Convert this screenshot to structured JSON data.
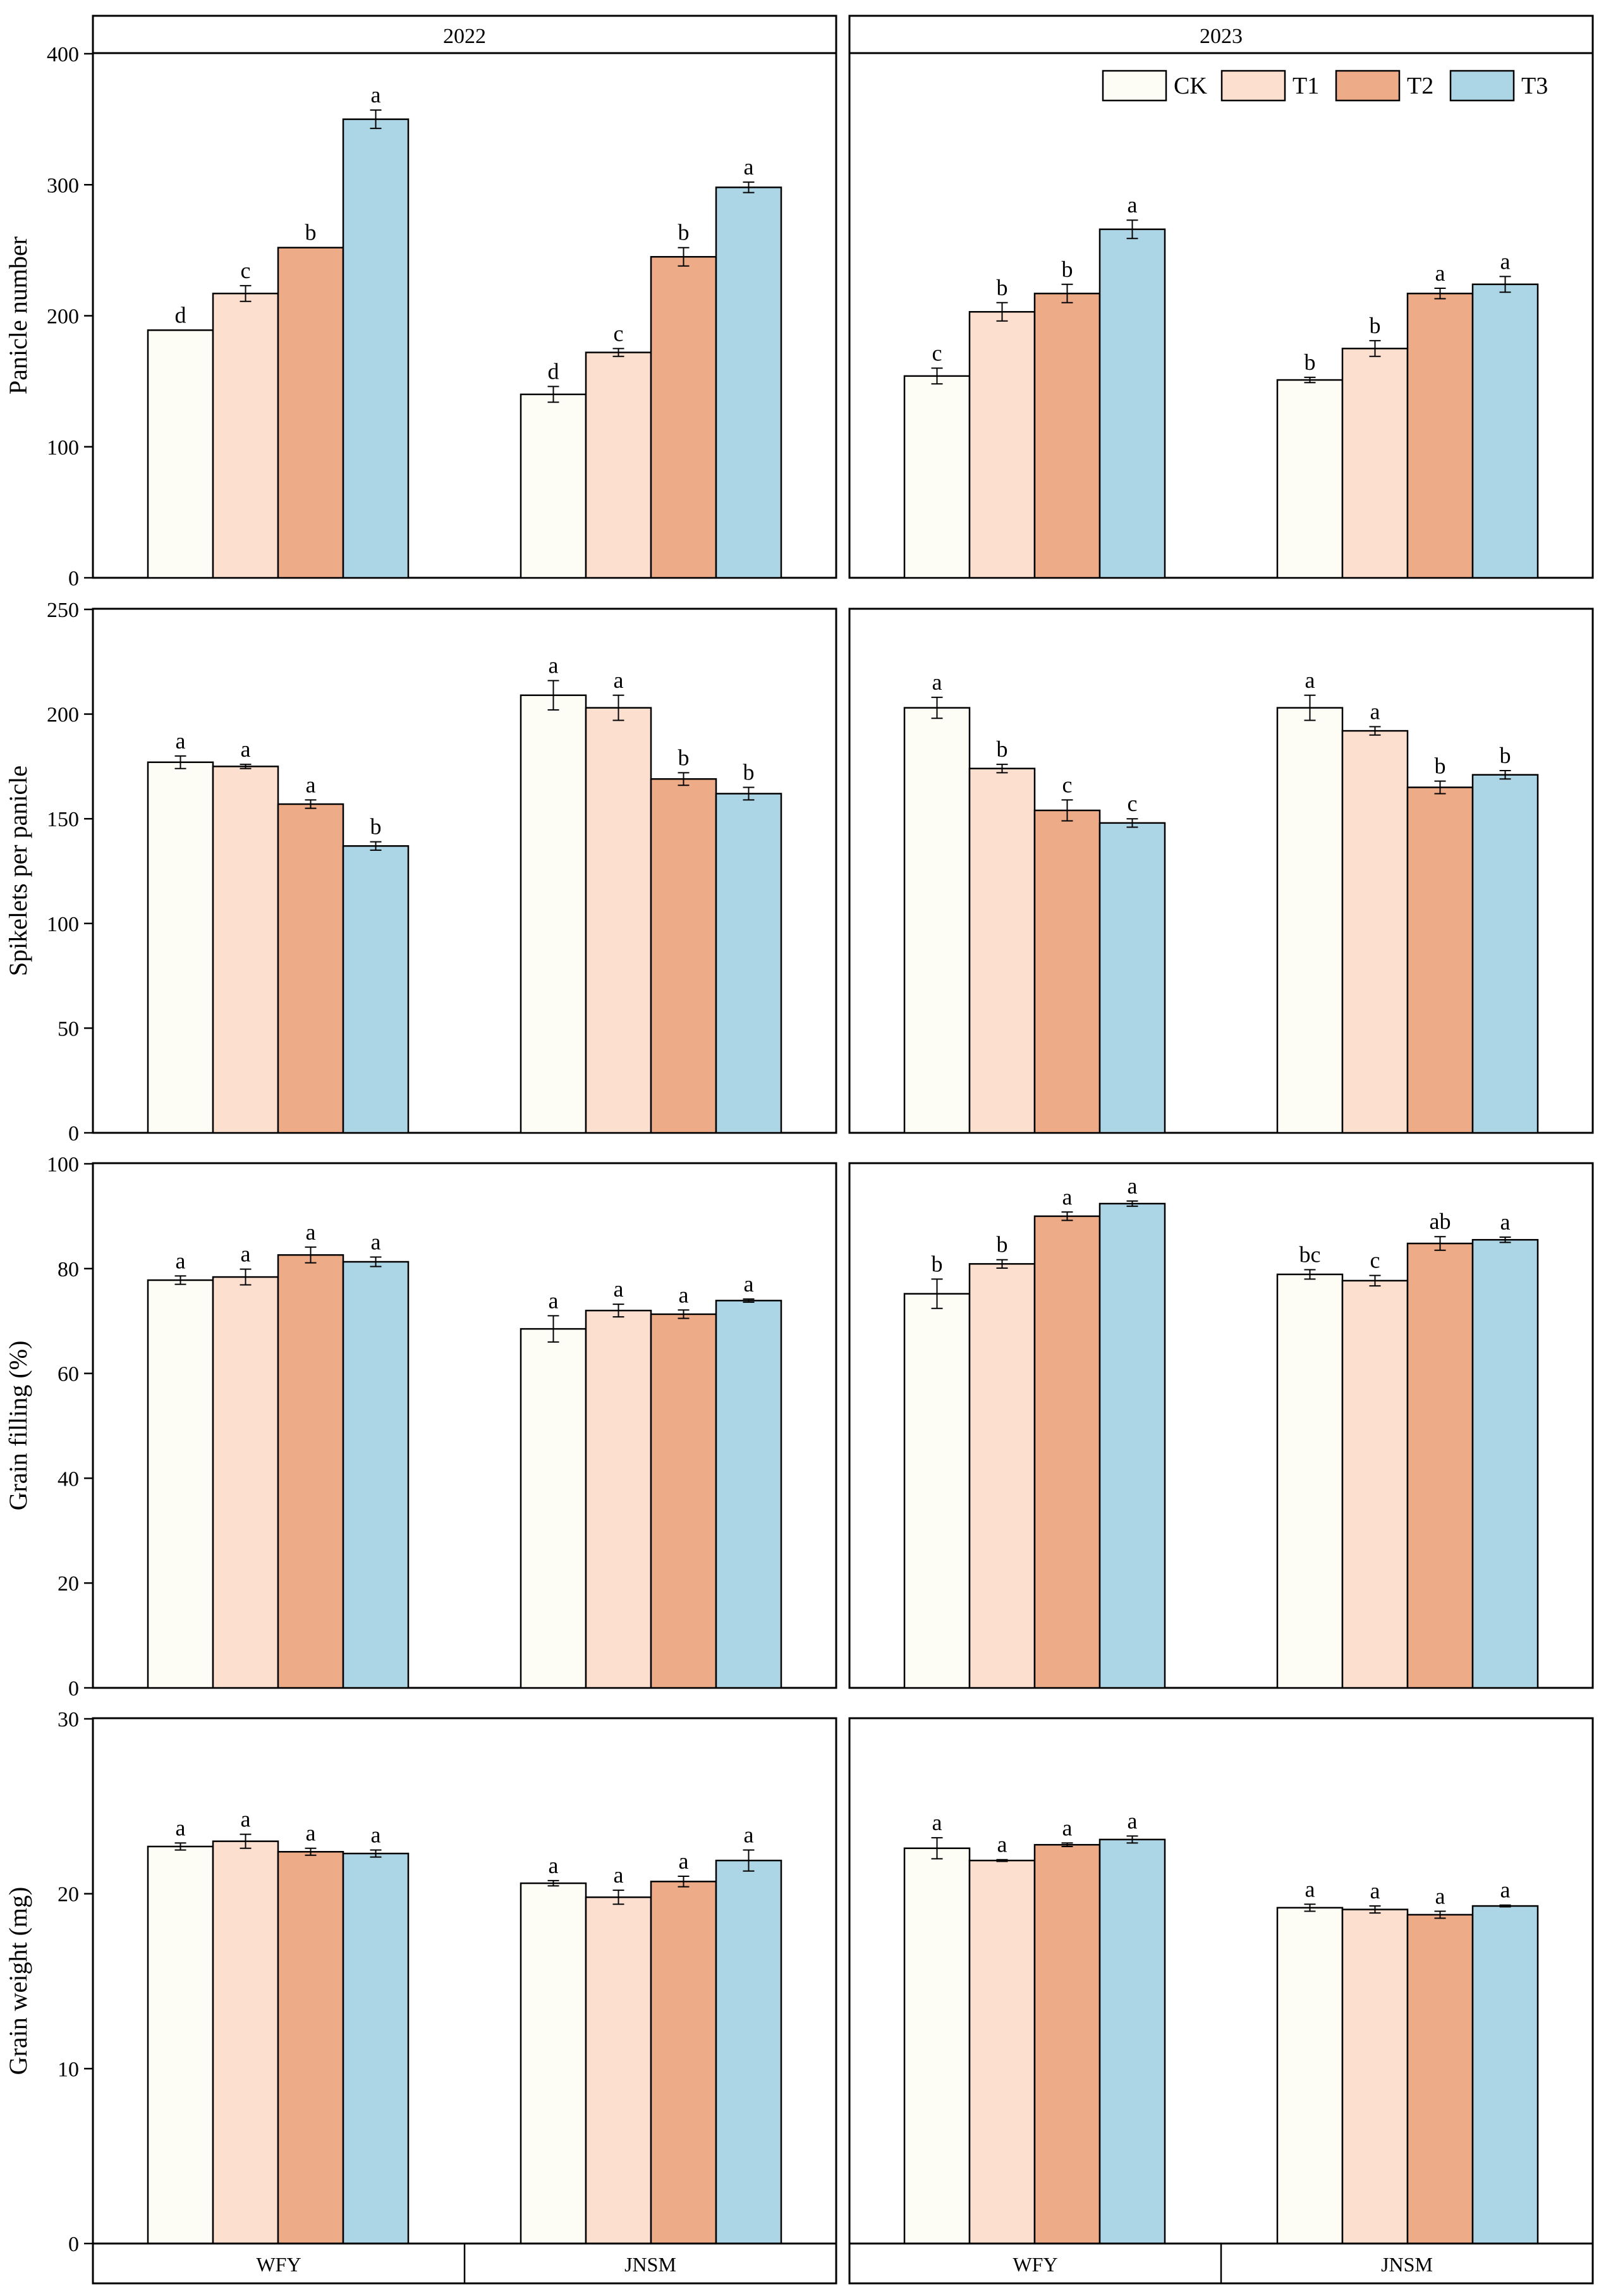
{
  "colors": {
    "CK": "#fefdf5",
    "T1": "#fddfcf",
    "T2": "#eeab88",
    "T3": "#acd5e6"
  },
  "legend": [
    "CK",
    "T1",
    "T2",
    "T3"
  ],
  "columns": [
    "2022",
    "2023"
  ],
  "varieties": [
    "WFY",
    "JNSM"
  ],
  "chart_data": [
    {
      "type": "bar",
      "row": 0,
      "col": 0,
      "title": "2022",
      "ylabel": "Panicle number",
      "ylim": [
        0,
        400
      ],
      "yticks": [
        0,
        100,
        200,
        300,
        400
      ],
      "categories": [
        "WFY",
        "JNSM"
      ],
      "series": [
        {
          "name": "CK",
          "values": [
            189,
            140
          ],
          "err": [
            0,
            6
          ],
          "letters": [
            "d",
            "d"
          ]
        },
        {
          "name": "T1",
          "values": [
            217,
            172
          ],
          "err": [
            6,
            3
          ],
          "letters": [
            "c",
            "c"
          ]
        },
        {
          "name": "T2",
          "values": [
            252,
            245
          ],
          "err": [
            0,
            7
          ],
          "letters": [
            "b",
            "b"
          ]
        },
        {
          "name": "T3",
          "values": [
            350,
            298
          ],
          "err": [
            7,
            4
          ],
          "letters": [
            "a",
            "a"
          ]
        }
      ]
    },
    {
      "type": "bar",
      "row": 0,
      "col": 1,
      "title": "2023",
      "ylabel": "",
      "ylim": [
        0,
        400
      ],
      "yticks": [],
      "categories": [
        "WFY",
        "JNSM"
      ],
      "series": [
        {
          "name": "CK",
          "values": [
            154,
            151
          ],
          "err": [
            6,
            2
          ],
          "letters": [
            "c",
            "b"
          ]
        },
        {
          "name": "T1",
          "values": [
            203,
            175
          ],
          "err": [
            7,
            6
          ],
          "letters": [
            "b",
            "b"
          ]
        },
        {
          "name": "T2",
          "values": [
            217,
            217
          ],
          "err": [
            7,
            4
          ],
          "letters": [
            "b",
            "a"
          ]
        },
        {
          "name": "T3",
          "values": [
            266,
            224
          ],
          "err": [
            7,
            6
          ],
          "letters": [
            "a",
            "a"
          ]
        }
      ]
    },
    {
      "type": "bar",
      "row": 1,
      "col": 0,
      "title": "",
      "ylabel": "Spikelets per panicle",
      "ylim": [
        0,
        250
      ],
      "yticks": [
        0,
        50,
        100,
        150,
        200,
        250
      ],
      "categories": [
        "WFY",
        "JNSM"
      ],
      "series": [
        {
          "name": "CK",
          "values": [
            177,
            209
          ],
          "err": [
            3,
            7
          ],
          "letters": [
            "a",
            "a"
          ]
        },
        {
          "name": "T1",
          "values": [
            175,
            203
          ],
          "err": [
            1,
            6
          ],
          "letters": [
            "a",
            "a"
          ]
        },
        {
          "name": "T2",
          "values": [
            157,
            169
          ],
          "err": [
            2,
            3
          ],
          "letters": [
            "a",
            "b"
          ]
        },
        {
          "name": "T3",
          "values": [
            137,
            162
          ],
          "err": [
            2,
            3
          ],
          "letters": [
            "b",
            "b"
          ]
        }
      ]
    },
    {
      "type": "bar",
      "row": 1,
      "col": 1,
      "title": "",
      "ylabel": "",
      "ylim": [
        0,
        250
      ],
      "yticks": [],
      "categories": [
        "WFY",
        "JNSM"
      ],
      "series": [
        {
          "name": "CK",
          "values": [
            203,
            203
          ],
          "err": [
            5,
            6
          ],
          "letters": [
            "a",
            "a"
          ]
        },
        {
          "name": "T1",
          "values": [
            174,
            192
          ],
          "err": [
            2,
            2
          ],
          "letters": [
            "b",
            "a"
          ]
        },
        {
          "name": "T2",
          "values": [
            154,
            165
          ],
          "err": [
            5,
            3
          ],
          "letters": [
            "c",
            "b"
          ]
        },
        {
          "name": "T3",
          "values": [
            148,
            171
          ],
          "err": [
            2,
            2
          ],
          "letters": [
            "c",
            "b"
          ]
        }
      ]
    },
    {
      "type": "bar",
      "row": 2,
      "col": 0,
      "title": "",
      "ylabel": "Grain filling (%)",
      "ylim": [
        0,
        100
      ],
      "yticks": [
        0,
        20,
        40,
        60,
        80,
        100
      ],
      "categories": [
        "WFY",
        "JNSM"
      ],
      "series": [
        {
          "name": "CK",
          "values": [
            77.8,
            68.5
          ],
          "err": [
            0.8,
            2.5
          ],
          "letters": [
            "a",
            "a"
          ]
        },
        {
          "name": "T1",
          "values": [
            78.4,
            72.0
          ],
          "err": [
            1.5,
            1.2
          ],
          "letters": [
            "a",
            "a"
          ]
        },
        {
          "name": "T2",
          "values": [
            82.6,
            71.3
          ],
          "err": [
            1.5,
            0.8
          ],
          "letters": [
            "a",
            "a"
          ]
        },
        {
          "name": "T3",
          "values": [
            81.3,
            73.9
          ],
          "err": [
            0.9,
            0.3
          ],
          "letters": [
            "a",
            "a"
          ]
        }
      ]
    },
    {
      "type": "bar",
      "row": 2,
      "col": 1,
      "title": "",
      "ylabel": "",
      "ylim": [
        0,
        100
      ],
      "yticks": [],
      "categories": [
        "WFY",
        "JNSM"
      ],
      "series": [
        {
          "name": "CK",
          "values": [
            75.2,
            78.9
          ],
          "err": [
            2.8,
            0.9
          ],
          "letters": [
            "b",
            "bc"
          ]
        },
        {
          "name": "T1",
          "values": [
            80.9,
            77.7
          ],
          "err": [
            0.8,
            1.0
          ],
          "letters": [
            "b",
            "c"
          ]
        },
        {
          "name": "T2",
          "values": [
            90.0,
            84.8
          ],
          "err": [
            0.8,
            1.3
          ],
          "letters": [
            "a",
            "ab"
          ]
        },
        {
          "name": "T3",
          "values": [
            92.4,
            85.5
          ],
          "err": [
            0.5,
            0.5
          ],
          "letters": [
            "a",
            "a"
          ]
        }
      ]
    },
    {
      "type": "bar",
      "row": 3,
      "col": 0,
      "title": "",
      "ylabel": "Grain weight (mg)",
      "ylim": [
        0,
        30
      ],
      "yticks": [
        0,
        10,
        20,
        30
      ],
      "categories": [
        "WFY",
        "JNSM"
      ],
      "series": [
        {
          "name": "CK",
          "values": [
            22.7,
            20.6
          ],
          "err": [
            0.2,
            0.15
          ],
          "letters": [
            "a",
            "a"
          ]
        },
        {
          "name": "T1",
          "values": [
            23.0,
            19.8
          ],
          "err": [
            0.4,
            0.4
          ],
          "letters": [
            "a",
            "a"
          ]
        },
        {
          "name": "T2",
          "values": [
            22.4,
            20.7
          ],
          "err": [
            0.2,
            0.3
          ],
          "letters": [
            "a",
            "a"
          ]
        },
        {
          "name": "T3",
          "values": [
            22.3,
            21.9
          ],
          "err": [
            0.2,
            0.6
          ],
          "letters": [
            "a",
            "a"
          ]
        }
      ]
    },
    {
      "type": "bar",
      "row": 3,
      "col": 1,
      "title": "",
      "ylabel": "",
      "ylim": [
        0,
        30
      ],
      "yticks": [],
      "categories": [
        "WFY",
        "JNSM"
      ],
      "series": [
        {
          "name": "CK",
          "values": [
            22.6,
            19.2
          ],
          "err": [
            0.6,
            0.2
          ],
          "letters": [
            "a",
            "a"
          ]
        },
        {
          "name": "T1",
          "values": [
            21.9,
            19.1
          ],
          "err": [
            0.05,
            0.2
          ],
          "letters": [
            "a",
            "a"
          ]
        },
        {
          "name": "T2",
          "values": [
            22.8,
            18.8
          ],
          "err": [
            0.1,
            0.2
          ],
          "letters": [
            "a",
            "a"
          ]
        },
        {
          "name": "T3",
          "values": [
            23.1,
            19.3
          ],
          "err": [
            0.2,
            0.05
          ],
          "letters": [
            "a",
            "a"
          ]
        }
      ]
    }
  ]
}
